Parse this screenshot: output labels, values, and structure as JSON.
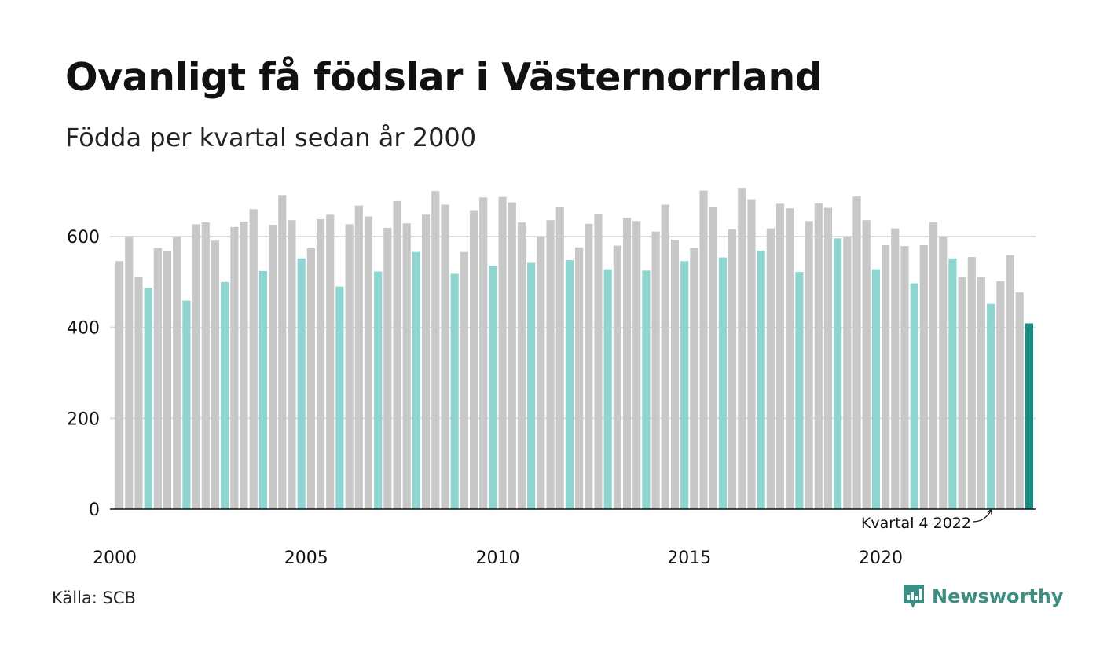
{
  "header": {
    "title": "Ovanligt få födslar i Västernorrland",
    "subtitle": "Födda per kvartal sedan år 2000"
  },
  "footer": {
    "source": "Källa: SCB",
    "brand": "Newsworthy"
  },
  "colors": {
    "bar_default": "#c8c8c8",
    "bar_q4": "#8ed5cf",
    "bar_latest": "#1a8e84",
    "brand": "#3a8f82",
    "gridline": "#dddddd"
  },
  "chart_data": {
    "type": "bar",
    "title": "Ovanligt få födslar i Västernorrland",
    "subtitle": "Födda per kvartal sedan år 2000",
    "xlabel": "",
    "ylabel": "",
    "ylim": [
      0,
      730
    ],
    "yticks": [
      0,
      200,
      400,
      600
    ],
    "xtick_labels": [
      "2000",
      "2005",
      "2010",
      "2015",
      "2020"
    ],
    "grid": true,
    "annotation": "Kvartal 4 2022",
    "start_year": 2000,
    "values": [
      546,
      601,
      512,
      487,
      575,
      568,
      600,
      459,
      627,
      631,
      591,
      500,
      621,
      633,
      660,
      524,
      626,
      691,
      636,
      552,
      574,
      638,
      648,
      490,
      627,
      668,
      644,
      523,
      619,
      678,
      629,
      566,
      648,
      700,
      670,
      518,
      566,
      658,
      686,
      536,
      687,
      675,
      631,
      542,
      600,
      636,
      664,
      548,
      576,
      628,
      650,
      528,
      580,
      641,
      634,
      525,
      611,
      670,
      593,
      546,
      575,
      701,
      664,
      554,
      616,
      707,
      682,
      569,
      618,
      672,
      662,
      522,
      634,
      673,
      663,
      596,
      600,
      688,
      636,
      528,
      581,
      618,
      579,
      497,
      581,
      631,
      600,
      552,
      511,
      555,
      511,
      452,
      502,
      559,
      477,
      409
    ]
  }
}
